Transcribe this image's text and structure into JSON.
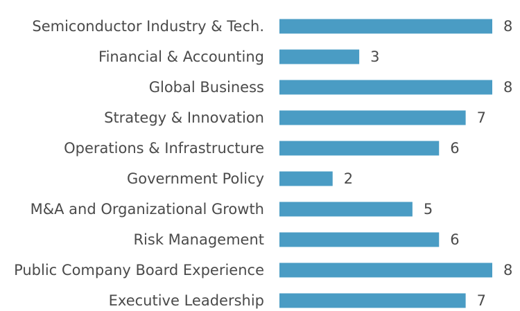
{
  "chart_data": {
    "type": "bar",
    "orientation": "horizontal",
    "categories": [
      "Semiconductor Industry & Tech.",
      "Financial & Accounting",
      "Global Business",
      "Strategy & Innovation",
      "Operations & Infrastructure",
      "Government Policy",
      "M&A and Organizational Growth",
      "Risk Management",
      "Public Company Board Experience",
      "Executive Leadership"
    ],
    "values": [
      8,
      3,
      8,
      7,
      6,
      2,
      5,
      6,
      8,
      7
    ],
    "xlim": [
      0,
      8
    ],
    "grid": false,
    "legend": "none",
    "bar_color": "#4a9cc4",
    "text_color": "#4a4a4a"
  }
}
